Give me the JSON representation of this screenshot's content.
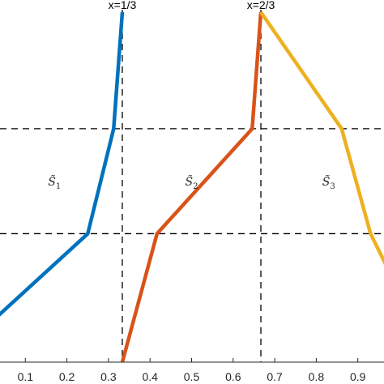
{
  "chart_data": {
    "type": "line",
    "title": "",
    "xlabel": "",
    "ylabel": "",
    "xlim": [
      0.0,
      1.0
    ],
    "ylim": [
      0.0,
      1.0
    ],
    "xticks": [
      0.1,
      0.2,
      0.3,
      0.4,
      0.5,
      0.6,
      0.7,
      0.8,
      0.9
    ],
    "xtick_labels": [
      "0.1",
      "0.2",
      "0.3",
      "0.4",
      "0.5",
      "0.6",
      "0.7",
      "0.8",
      "0.9"
    ],
    "grid": false,
    "legend": "none",
    "series": [
      {
        "color": "#0072BD",
        "x": [
          0.0,
          0.25,
          0.3125,
          0.3333
        ],
        "y": [
          0.095,
          0.367,
          0.667,
          1.0
        ]
      },
      {
        "color": "#D95319",
        "x": [
          0.3333,
          0.4167,
          0.6458,
          0.6667
        ],
        "y": [
          0.0,
          0.367,
          0.667,
          1.0
        ]
      },
      {
        "color": "#EDB120",
        "x": [
          0.6667,
          0.8611,
          0.9306,
          1.0
        ],
        "y": [
          1.0,
          0.667,
          0.367,
          0.2
        ]
      }
    ],
    "reference_lines": {
      "vertical": [
        {
          "x": 0.3333,
          "label": "x=1/3"
        },
        {
          "x": 0.6667,
          "label": "x=2/3"
        }
      ],
      "horizontal": [
        {
          "y": 0.667
        },
        {
          "y": 0.367
        }
      ]
    },
    "annotations": [
      {
        "base": "S̃",
        "sub": "1",
        "x": 0.17,
        "y": 0.5
      },
      {
        "base": "S̃",
        "sub": "2",
        "x": 0.5,
        "y": 0.5
      },
      {
        "base": "S̃",
        "sub": "3",
        "x": 0.83,
        "y": 0.5
      }
    ]
  }
}
